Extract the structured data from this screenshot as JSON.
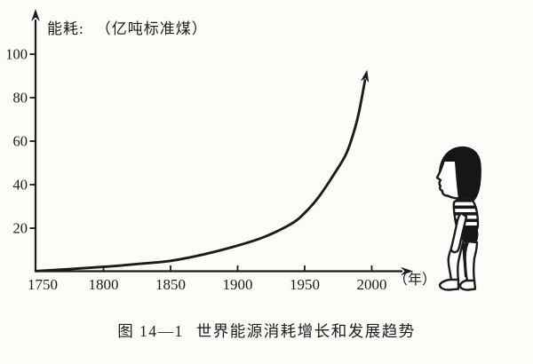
{
  "page": {
    "paper_color": "#fcfcf9",
    "ink_color": "#1c1c1c"
  },
  "chart": {
    "y_axis_label_prefix": "能耗:",
    "y_axis_label_unit": "（亿吨标准煤）",
    "x_axis_unit": "（年）"
  },
  "caption": {
    "figure_number": "图 14—1",
    "title": "世界能源消耗增长和发展趋势"
  },
  "chart_data": {
    "type": "line",
    "title": "图 14—1 世界能源消耗增长和发展趋势",
    "xlabel": "年",
    "ylabel": "能耗（亿吨标准煤）",
    "xlim": [
      1750,
      2010
    ],
    "ylim": [
      0,
      112
    ],
    "x_tick_values": [
      1750,
      1800,
      1850,
      1900,
      1950,
      2000
    ],
    "y_tick_values": [
      20,
      40,
      60,
      80,
      100
    ],
    "grid": false,
    "legend": false,
    "line_ends_in_arrow": true,
    "series": [
      {
        "name": "世界能源消耗",
        "x": [
          1750,
          1775,
          1800,
          1825,
          1850,
          1875,
          1900,
          1920,
          1940,
          1950,
          1960,
          1970,
          1980,
          1985,
          1990,
          1995
        ],
        "y": [
          0.3,
          1.2,
          2.2,
          3.5,
          5,
          8,
          12,
          16,
          22,
          27,
          34,
          43,
          53,
          61,
          72,
          88
        ]
      }
    ]
  }
}
